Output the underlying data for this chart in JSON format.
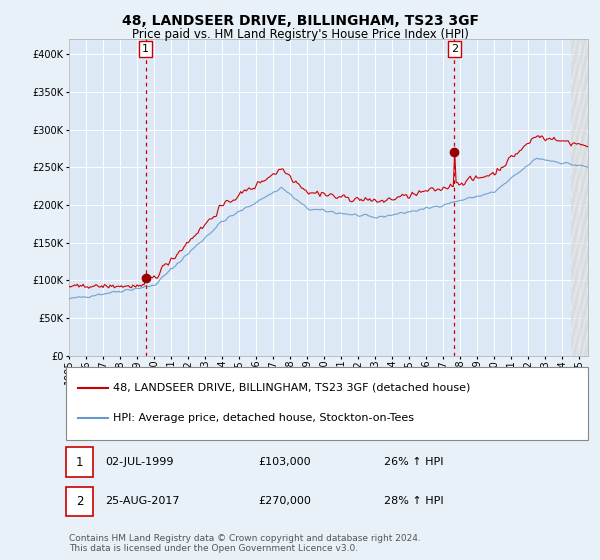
{
  "title": "48, LANDSEER DRIVE, BILLINGHAM, TS23 3GF",
  "subtitle": "Price paid vs. HM Land Registry's House Price Index (HPI)",
  "legend_line1": "48, LANDSEER DRIVE, BILLINGHAM, TS23 3GF (detached house)",
  "legend_line2": "HPI: Average price, detached house, Stockton-on-Tees",
  "footer": "Contains HM Land Registry data © Crown copyright and database right 2024.\nThis data is licensed under the Open Government Licence v3.0.",
  "annotation1_date": "02-JUL-1999",
  "annotation1_price": "£103,000",
  "annotation1_hpi": "26% ↑ HPI",
  "annotation2_date": "25-AUG-2017",
  "annotation2_price": "£270,000",
  "annotation2_hpi": "28% ↑ HPI",
  "sale1_year": 1999.5,
  "sale1_value": 103000,
  "sale2_year": 2017.65,
  "sale2_value": 270000,
  "ylim": [
    0,
    420000
  ],
  "xlim_start": 1995,
  "xlim_end": 2025.5,
  "hpi_color": "#6699cc",
  "red_color": "#cc0000",
  "bg_color": "#e8f0f8",
  "plot_bg": "#dce8f5",
  "grid_color": "#ffffff",
  "title_fontsize": 10,
  "subtitle_fontsize": 8.5,
  "tick_fontsize": 7,
  "legend_fontsize": 8,
  "annot_fontsize": 8,
  "footer_fontsize": 6.5
}
